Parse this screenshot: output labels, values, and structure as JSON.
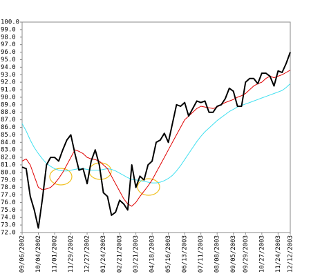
{
  "chart_data": {
    "type": "line",
    "categories": [
      "09/06/2002",
      null,
      null,
      null,
      "10/04/2002",
      null,
      null,
      null,
      "11/01/2002",
      null,
      null,
      null,
      "11/29/2002",
      null,
      null,
      null,
      "12/27/2002",
      null,
      null,
      null,
      "01/24/2003",
      null,
      null,
      null,
      "02/21/2003",
      null,
      null,
      null,
      "03/21/2003",
      null,
      null,
      null,
      "04/18/2003",
      null,
      null,
      null,
      "05/16/2003",
      null,
      null,
      null,
      "06/13/2003",
      null,
      null,
      null,
      "07/11/2003",
      null,
      null,
      null,
      "08/08/2003",
      null,
      null,
      null,
      "09/05/2003",
      null,
      null,
      "09/29/2003",
      null,
      null,
      null,
      "10/27/2003",
      null,
      null,
      null,
      "11/24/2003",
      null,
      null,
      "12/12/2003"
    ],
    "series": [
      {
        "color": "#000000",
        "values": [
          80.7,
          80.5,
          76.8,
          75.0,
          72.6,
          76.5,
          81.0,
          82.0,
          82.0,
          81.5,
          83.0,
          84.3,
          85.0,
          82.5,
          80.3,
          80.5,
          78.5,
          81.5,
          83.0,
          81.0,
          77.3,
          76.8,
          74.3,
          74.7,
          76.3,
          75.8,
          75.0,
          81.0,
          78.0,
          79.5,
          79.0,
          81.0,
          81.5,
          84.0,
          84.3,
          85.2,
          84.0,
          86.5,
          89.0,
          88.8,
          89.3,
          87.5,
          88.5,
          89.5,
          89.3,
          89.5,
          88.0,
          88.0,
          88.8,
          89.0,
          89.8,
          91.2,
          90.8,
          88.8,
          88.8,
          92.0,
          92.5,
          92.5,
          91.8,
          93.2,
          93.2,
          92.8,
          91.5,
          93.5,
          93.3,
          94.5,
          96.0
        ]
      },
      {
        "color": "#e00000",
        "values": [
          81.5,
          81.8,
          81.0,
          79.5,
          78.0,
          77.7,
          77.8,
          78.0,
          78.5,
          79.2,
          80.0,
          81.0,
          82.0,
          83.0,
          82.8,
          82.5,
          82.0,
          81.8,
          81.7,
          81.5,
          81.0,
          80.5,
          79.5,
          78.5,
          77.5,
          76.5,
          75.8,
          75.5,
          76.0,
          76.8,
          77.5,
          78.2,
          79.0,
          80.0,
          81.0,
          82.0,
          83.0,
          84.0,
          85.0,
          86.0,
          87.0,
          87.5,
          88.0,
          88.5,
          88.8,
          88.7,
          88.6,
          88.5,
          88.7,
          89.0,
          89.3,
          89.5,
          89.7,
          90.0,
          90.2,
          90.5,
          91.0,
          91.5,
          91.8,
          92.0,
          92.5,
          92.8,
          92.6,
          92.8,
          93.0,
          93.3,
          93.6
        ]
      },
      {
        "color": "#40e0f0",
        "values": [
          86.5,
          85.5,
          84.3,
          83.3,
          82.5,
          81.8,
          81.2,
          80.8,
          80.5,
          80.3,
          80.2,
          80.2,
          80.3,
          80.4,
          80.5,
          80.5,
          80.4,
          80.3,
          80.3,
          80.3,
          80.4,
          80.5,
          80.4,
          80.2,
          79.9,
          79.6,
          79.3,
          79.1,
          79.0,
          78.9,
          78.8,
          78.7,
          78.6,
          78.6,
          78.7,
          78.9,
          79.2,
          79.6,
          80.2,
          80.9,
          81.7,
          82.5,
          83.3,
          84.1,
          84.8,
          85.4,
          85.9,
          86.4,
          86.9,
          87.3,
          87.7,
          88.1,
          88.4,
          88.7,
          88.9,
          89.1,
          89.3,
          89.5,
          89.7,
          89.9,
          90.1,
          90.3,
          90.5,
          90.7,
          90.9,
          91.3,
          91.8
        ]
      }
    ],
    "ylim": [
      72,
      100
    ],
    "yticks": [
      {
        "value": 72,
        "label": "72.0"
      },
      {
        "value": 73,
        "label": "73.0"
      },
      {
        "value": 74,
        "label": "74.0"
      },
      {
        "value": 75,
        "label": "75.0"
      },
      {
        "value": 76,
        "label": "76.0"
      },
      {
        "value": 77,
        "label": "77.0"
      },
      {
        "value": 78,
        "label": "78.0"
      },
      {
        "value": 79,
        "label": "79.0"
      },
      {
        "value": 80,
        "label": "80.0"
      },
      {
        "value": 81,
        "label": "81.0"
      },
      {
        "value": 82,
        "label": "82.0"
      },
      {
        "value": 83,
        "label": "83.0"
      },
      {
        "value": 84,
        "label": "84.0"
      },
      {
        "value": 85,
        "label": "85.0"
      },
      {
        "value": 86,
        "label": "86.0"
      },
      {
        "value": 87,
        "label": "87.0"
      },
      {
        "value": 88,
        "label": "88.0"
      },
      {
        "value": 89,
        "label": "89.0"
      },
      {
        "value": 90,
        "label": "90.0"
      },
      {
        "value": 91,
        "label": "91.0"
      },
      {
        "value": 92,
        "label": "92.0"
      },
      {
        "value": 93,
        "label": "93.0"
      },
      {
        "value": 94,
        "label": "94.0"
      },
      {
        "value": 95,
        "label": "95.0"
      },
      {
        "value": 96,
        "label": "96.0"
      },
      {
        "value": 97,
        "label": "97.0"
      },
      {
        "value": 98,
        "label": "98.0"
      },
      {
        "value": 99,
        "label": "99.0"
      },
      {
        "value": 100,
        "label": "100.0"
      }
    ],
    "grid": false
  }
}
